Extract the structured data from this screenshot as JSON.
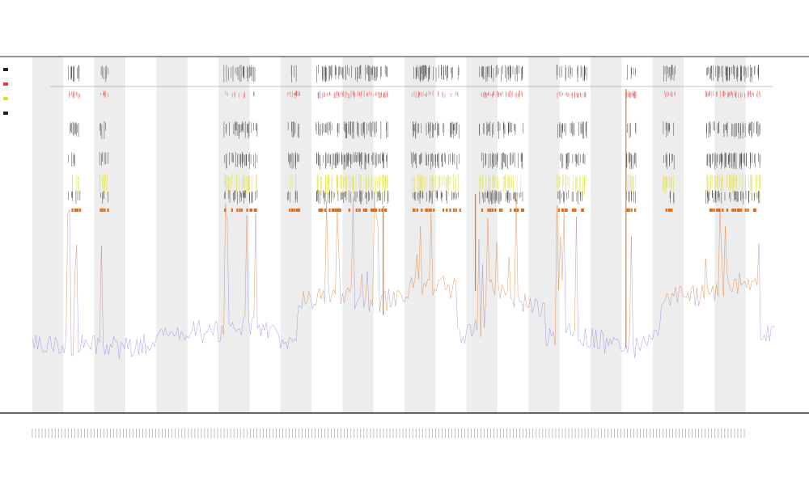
{
  "chart_data": {
    "type": "line",
    "title": "",
    "subtitle": "",
    "xlabel": "",
    "ylabel": "",
    "legend": "top-left",
    "grid": false,
    "n_bands": 24,
    "n_points": 420,
    "xlim": [
      0,
      420
    ],
    "ylim": [
      0,
      1
    ],
    "colors": {
      "low": "#6f73e0",
      "high": "#e07a2a",
      "band": "#ededed",
      "tick_black": "#222222",
      "tick_red": "#e04040",
      "tick_yellow": "#dede30",
      "tick_orange": "#e06a1a"
    },
    "tracks": [
      {
        "name": "",
        "color": "#222222"
      },
      {
        "name": "",
        "color": "#e04040"
      },
      {
        "name": "",
        "color": "#222222"
      },
      {
        "name": "",
        "color": "#222222"
      },
      {
        "name": "",
        "color": "#dede30"
      },
      {
        "name": "",
        "color": "#222222"
      },
      {
        "name": "",
        "color": "#e06a1a"
      }
    ],
    "active_regions": [
      [
        20,
        26
      ],
      [
        38,
        42
      ],
      [
        108,
        126
      ],
      [
        144,
        150
      ],
      [
        160,
        200
      ],
      [
        214,
        240
      ],
      [
        252,
        276
      ],
      [
        296,
        312
      ],
      [
        335,
        340
      ],
      [
        356,
        362
      ],
      [
        380,
        410
      ]
    ]
  }
}
